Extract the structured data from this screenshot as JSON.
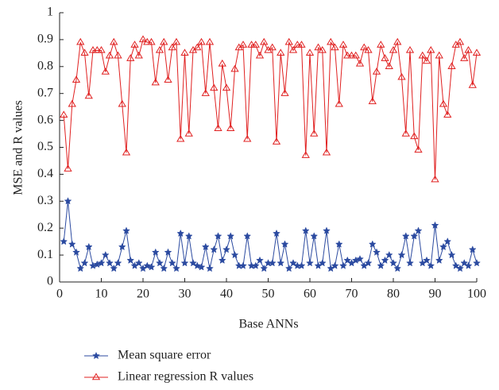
{
  "chart_data": {
    "type": "line",
    "xlabel": "Base ANNs",
    "ylabel": "MSE and R values",
    "x": [
      1,
      2,
      3,
      4,
      5,
      6,
      7,
      8,
      9,
      10,
      11,
      12,
      13,
      14,
      15,
      16,
      17,
      18,
      19,
      20,
      21,
      22,
      23,
      24,
      25,
      26,
      27,
      28,
      29,
      30,
      31,
      32,
      33,
      34,
      35,
      36,
      37,
      38,
      39,
      40,
      41,
      42,
      43,
      44,
      45,
      46,
      47,
      48,
      49,
      50,
      51,
      52,
      53,
      54,
      55,
      56,
      57,
      58,
      59,
      60,
      61,
      62,
      63,
      64,
      65,
      66,
      67,
      68,
      69,
      70,
      71,
      72,
      73,
      74,
      75,
      76,
      77,
      78,
      79,
      80,
      81,
      82,
      83,
      84,
      85,
      86,
      87,
      88,
      89,
      90,
      91,
      92,
      93,
      94,
      95,
      96,
      97,
      98,
      99,
      100
    ],
    "series": [
      {
        "name": "Mean square error",
        "color": "#2b4aa0",
        "marker": "star",
        "values": [
          0.15,
          0.3,
          0.14,
          0.11,
          0.05,
          0.07,
          0.13,
          0.06,
          0.065,
          0.07,
          0.1,
          0.07,
          0.05,
          0.07,
          0.13,
          0.19,
          0.08,
          0.06,
          0.07,
          0.05,
          0.06,
          0.055,
          0.11,
          0.07,
          0.05,
          0.11,
          0.07,
          0.05,
          0.18,
          0.07,
          0.17,
          0.07,
          0.06,
          0.055,
          0.13,
          0.05,
          0.12,
          0.17,
          0.08,
          0.12,
          0.17,
          0.1,
          0.06,
          0.06,
          0.17,
          0.06,
          0.06,
          0.08,
          0.05,
          0.07,
          0.07,
          0.18,
          0.07,
          0.14,
          0.05,
          0.07,
          0.06,
          0.06,
          0.19,
          0.07,
          0.17,
          0.06,
          0.07,
          0.19,
          0.05,
          0.06,
          0.14,
          0.06,
          0.08,
          0.07,
          0.08,
          0.085,
          0.06,
          0.07,
          0.14,
          0.11,
          0.06,
          0.08,
          0.1,
          0.07,
          0.05,
          0.1,
          0.17,
          0.07,
          0.17,
          0.19,
          0.07,
          0.08,
          0.06,
          0.21,
          0.08,
          0.13,
          0.15,
          0.1,
          0.06,
          0.05,
          0.07,
          0.06,
          0.12,
          0.07
        ]
      },
      {
        "name": "Linear regression R values",
        "color": "#e02020",
        "marker": "triangle",
        "values": [
          0.62,
          0.42,
          0.66,
          0.75,
          0.89,
          0.85,
          0.69,
          0.86,
          0.86,
          0.86,
          0.78,
          0.84,
          0.89,
          0.84,
          0.66,
          0.48,
          0.83,
          0.88,
          0.84,
          0.9,
          0.89,
          0.89,
          0.74,
          0.86,
          0.89,
          0.75,
          0.87,
          0.89,
          0.53,
          0.85,
          0.55,
          0.86,
          0.87,
          0.89,
          0.7,
          0.89,
          0.72,
          0.57,
          0.81,
          0.72,
          0.57,
          0.79,
          0.87,
          0.88,
          0.53,
          0.88,
          0.88,
          0.84,
          0.89,
          0.86,
          0.87,
          0.52,
          0.85,
          0.7,
          0.89,
          0.86,
          0.88,
          0.88,
          0.47,
          0.85,
          0.55,
          0.87,
          0.86,
          0.48,
          0.89,
          0.87,
          0.66,
          0.88,
          0.84,
          0.84,
          0.84,
          0.81,
          0.87,
          0.86,
          0.67,
          0.78,
          0.88,
          0.83,
          0.8,
          0.86,
          0.89,
          0.76,
          0.55,
          0.86,
          0.54,
          0.49,
          0.84,
          0.82,
          0.86,
          0.38,
          0.84,
          0.66,
          0.62,
          0.8,
          0.88,
          0.89,
          0.83,
          0.86,
          0.73,
          0.85
        ]
      }
    ],
    "xlim": [
      0,
      100
    ],
    "xticks": [
      0,
      10,
      20,
      30,
      40,
      50,
      60,
      70,
      80,
      90,
      100
    ],
    "ylim": [
      0,
      1
    ],
    "yticks": [
      0,
      0.1,
      0.2,
      0.3,
      0.4,
      0.5,
      0.6,
      0.7,
      0.8,
      0.9,
      1
    ]
  }
}
